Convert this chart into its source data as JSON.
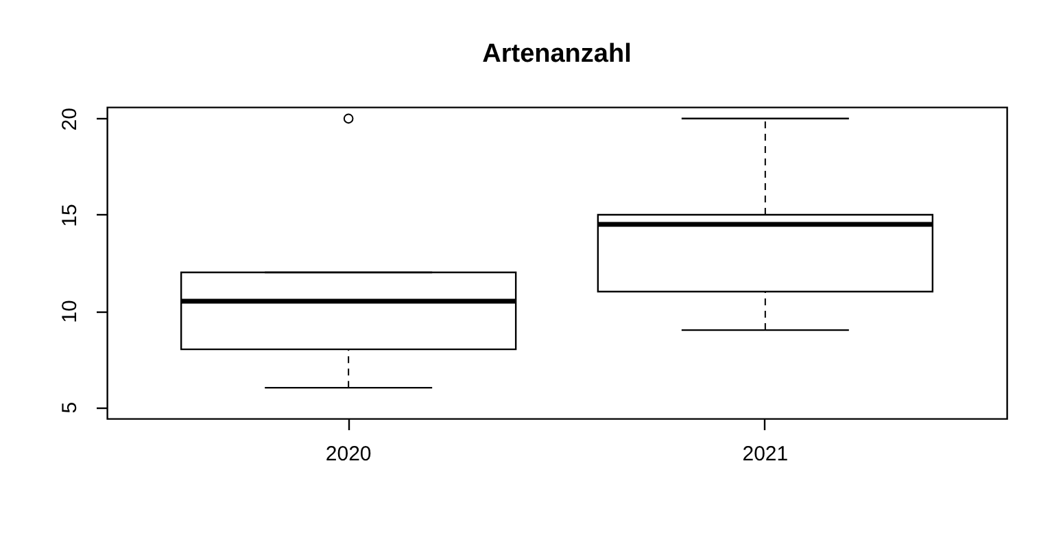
{
  "chart_data": {
    "type": "box",
    "title": "Artenanzahl",
    "categories": [
      "2020",
      "2021"
    ],
    "boxes": [
      {
        "low": 6,
        "q1": 8,
        "median": 10.5,
        "q3": 12,
        "high": 12,
        "outliers": [
          20
        ]
      },
      {
        "low": 9,
        "q1": 11,
        "median": 14.5,
        "q3": 15,
        "high": 20
      }
    ],
    "ylim": [
      4.4,
      20.6
    ],
    "yticks": [
      5,
      10,
      15,
      20
    ],
    "grid": false
  }
}
